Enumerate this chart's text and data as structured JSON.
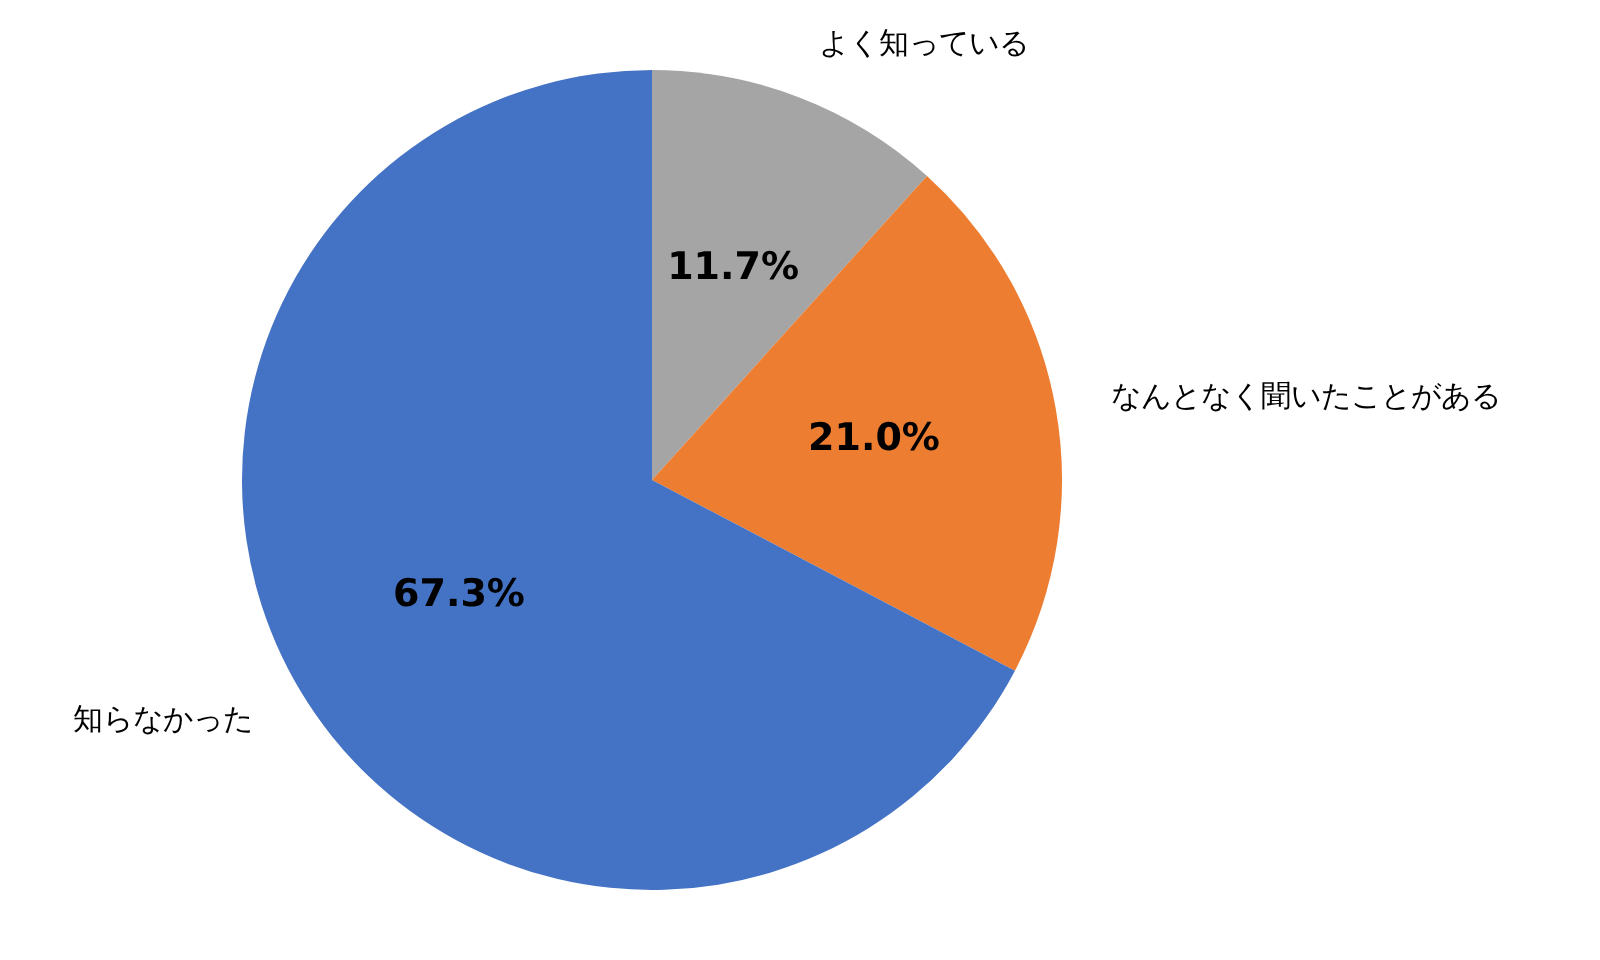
{
  "chart_data": {
    "type": "pie",
    "categories": [
      "よく知っている",
      "なんとなく聞いたことがある",
      "知らなかった"
    ],
    "values": [
      11.7,
      21.0,
      67.3
    ],
    "colors": [
      "#a5a5a5",
      "#ed7d31",
      "#4472c4"
    ],
    "value_labels": [
      "11.7%",
      "21.0%",
      "67.3%"
    ],
    "legend": false
  }
}
